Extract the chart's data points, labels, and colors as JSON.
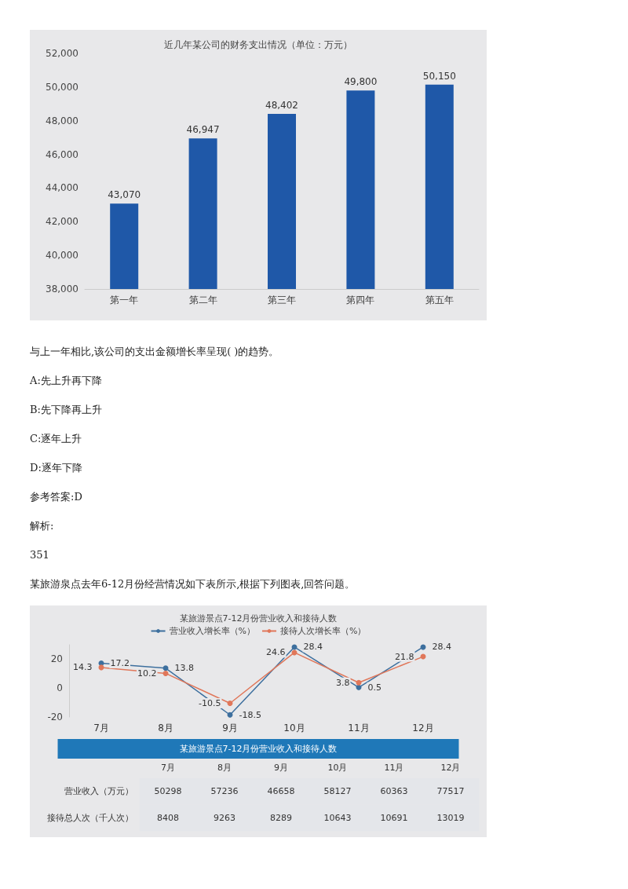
{
  "chart_data": [
    {
      "type": "bar",
      "title": "近几年某公司的财务支出情况（单位：万元）",
      "categories": [
        "第一年",
        "第二年",
        "第三年",
        "第四年",
        "第五年"
      ],
      "values": [
        43070,
        46947,
        48402,
        49800,
        50150
      ],
      "value_labels": [
        "43,070",
        "46,947",
        "48,402",
        "49,800",
        "50,150"
      ],
      "color": "#1f58a8",
      "ylim": [
        38000,
        52000
      ],
      "yticks": [
        {
          "value": 38000,
          "label": "38,000"
        },
        {
          "value": 40000,
          "label": "40,000"
        },
        {
          "value": 42000,
          "label": "42,000"
        },
        {
          "value": 44000,
          "label": "44,000"
        },
        {
          "value": 46000,
          "label": "46,000"
        },
        {
          "value": 48000,
          "label": "48,000"
        },
        {
          "value": 50000,
          "label": "50,000"
        },
        {
          "value": 52000,
          "label": "52,000"
        }
      ],
      "annotations": [
        "与上一年相比,该公司的支出金额增长率呈现( )的趋势。",
        "A:先上升再下降",
        "B:先下降再上升",
        "C:逐年上升",
        "D:逐年下降",
        "参考答案:D",
        "解析:",
        "351",
        "某旅游泉点去年6-12月份经营情况如下表所示,根据下列图表,回答问题。"
      ]
    },
    {
      "type": "line",
      "title": "某旅游景点7-12月份营业收入和接待人数",
      "categories": [
        "7月",
        "8月",
        "9月",
        "10月",
        "11月",
        "12月"
      ],
      "series": [
        {
          "name": "营业收入增长率（%）",
          "color": "#3d6f9e",
          "values": [
            17.2,
            13.8,
            -18.5,
            28.4,
            0.5,
            28.4
          ]
        },
        {
          "name": "接待人次增长率（%）",
          "color": "#e0775a",
          "values": [
            14.3,
            10.2,
            -10.5,
            24.6,
            3.8,
            21.8
          ]
        }
      ],
      "ylim": [
        -20,
        30
      ],
      "yticks": [
        -20,
        0,
        20
      ],
      "legend": "top",
      "marker": "circle",
      "data_labels": true
    },
    {
      "type": "heatmap",
      "title": "某旅游景点7-12月份营业收入和接待人数",
      "categories": [
        "7月",
        "8月",
        "9月",
        "10月",
        "11月",
        "12月"
      ],
      "y_categories": [
        "营业收入（万元）",
        "接待总人次（千人次）"
      ],
      "cells": [
        [
          50298,
          57236,
          46658,
          58127,
          60363,
          77517
        ],
        [
          8408,
          9263,
          8289,
          10643,
          10691,
          13019
        ]
      ],
      "color": "#e4e6ea",
      "data_labels": true
    }
  ]
}
